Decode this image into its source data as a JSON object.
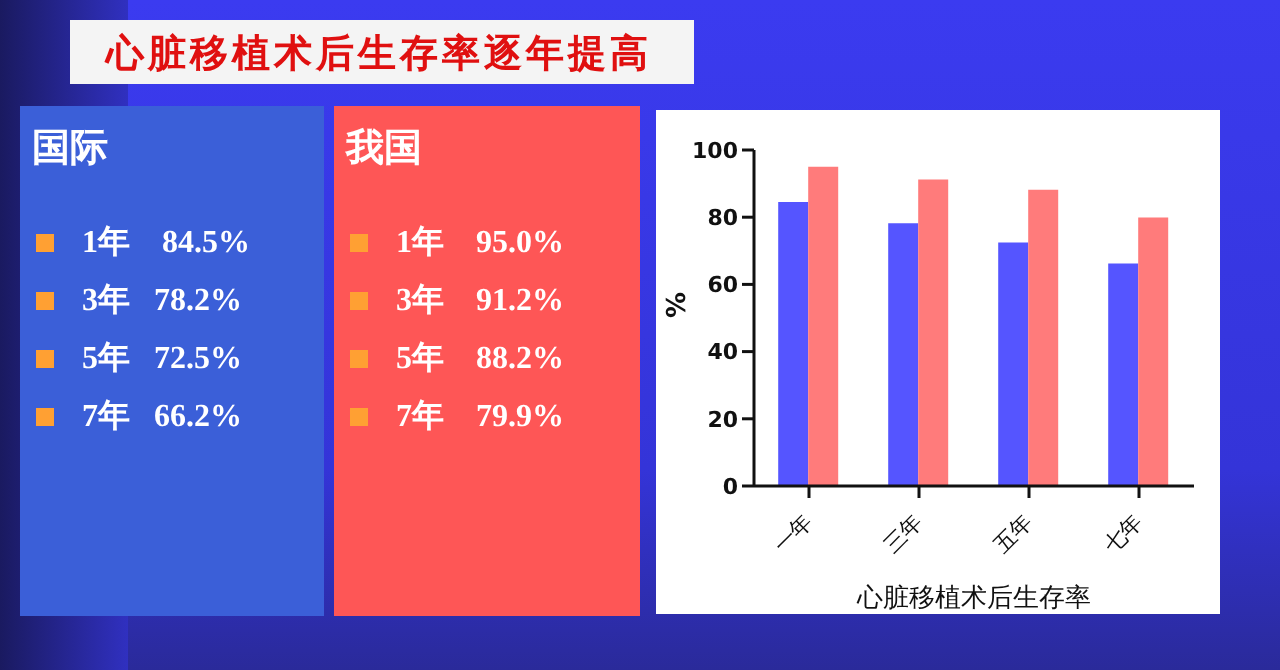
{
  "chart_data": [
    {
      "type": "other",
      "title": "心脏移植术后生存率逐年提高"
    },
    {
      "type": "other",
      "title": "国际",
      "annotations": [
        "1年    84.5%",
        "3年   78.2%",
        "5年   72.5%",
        "7年   66.2%"
      ]
    },
    {
      "type": "other",
      "title": "我国",
      "annotations": [
        "1年    95.0%",
        "3年    91.2%",
        "5年    88.2%",
        "7年    79.9%"
      ]
    },
    {
      "type": "bar",
      "xlabel": "心脏移植术后生存率",
      "ylabel": "%",
      "categories": [
        "一年",
        "三年",
        "五年",
        "七年"
      ],
      "series": [
        {
          "color": "#5555ff",
          "values": [
            84.5,
            78.2,
            72.5,
            66.2
          ]
        },
        {
          "color": "#ff7b7b",
          "values": [
            95.0,
            91.2,
            88.2,
            79.9
          ]
        }
      ],
      "ylim": [
        0,
        100
      ],
      "yticks": [
        0,
        20,
        40,
        60,
        80,
        100
      ],
      "grid": false,
      "legend": false
    }
  ]
}
